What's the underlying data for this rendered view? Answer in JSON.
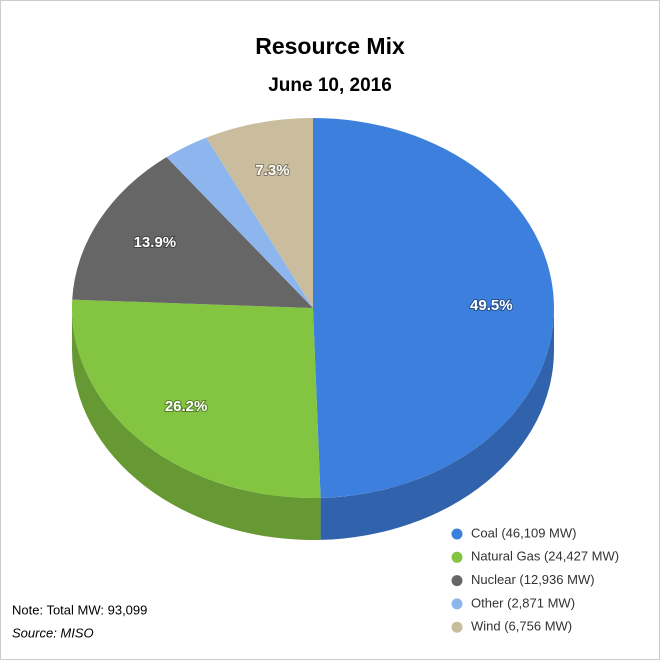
{
  "chart_data": {
    "type": "pie",
    "title": "Resource Mix",
    "subtitle": "June 10, 2016",
    "categories": [
      "Coal (46,109 MW)",
      "Natural Gas (24,427 MW)",
      "Nuclear (12,936 MW)",
      "Other (2,871 MW)",
      "Wind (6,756 MW)"
    ],
    "values": [
      49.5,
      26.2,
      13.9,
      3.1,
      7.3
    ],
    "value_labels": [
      "49.5%",
      "26.2%",
      "13.9%",
      null,
      "7.3%"
    ],
    "colors": [
      "#3d7fdd",
      "#83c441",
      "#666666",
      "#8db5ee",
      "#c9bd9e"
    ],
    "note": "Note: Total MW: 93,099",
    "source": "Source: MISO"
  }
}
